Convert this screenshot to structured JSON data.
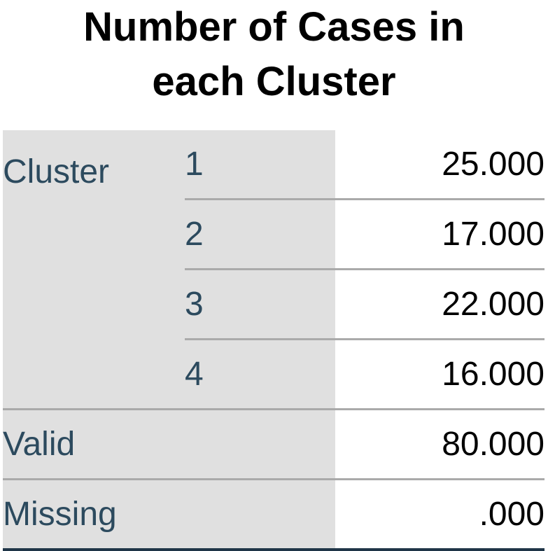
{
  "title": {
    "line1": "Number of Cases in",
    "line2": "each Cluster"
  },
  "table": {
    "group_label": "Cluster",
    "clusters": [
      {
        "label": "1",
        "value": "25.000"
      },
      {
        "label": "2",
        "value": "17.000"
      },
      {
        "label": "3",
        "value": "22.000"
      },
      {
        "label": "4",
        "value": "16.000"
      }
    ],
    "valid": {
      "label": "Valid",
      "value": "80.000"
    },
    "missing": {
      "label": "Missing",
      "value": ".000"
    }
  }
}
